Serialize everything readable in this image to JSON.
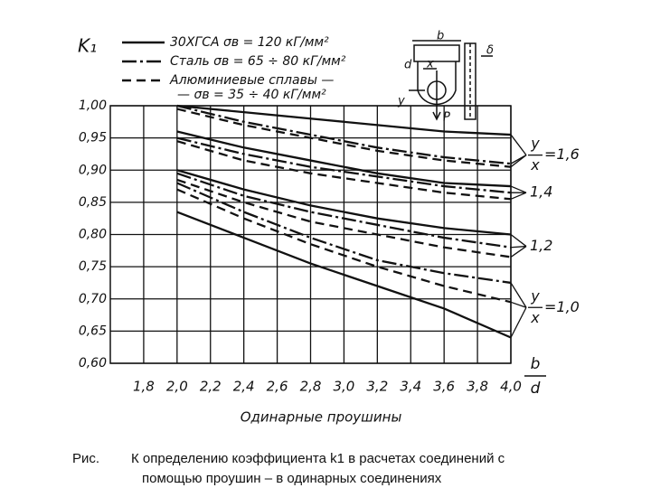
{
  "chart_data": {
    "type": "line",
    "y_axis_label": "K₁",
    "x_axis_label": {
      "numerator": "b",
      "denominator": "d"
    },
    "subtitle": "Одинарные проушины",
    "xlim": [
      1.6,
      4.0
    ],
    "ylim": [
      0.6,
      1.0
    ],
    "xticks": [
      {
        "value": 1.8,
        "label": "1,8"
      },
      {
        "value": 2.0,
        "label": "2,0"
      },
      {
        "value": 2.2,
        "label": "2,2"
      },
      {
        "value": 2.4,
        "label": "2,4"
      },
      {
        "value": 2.6,
        "label": "2,6"
      },
      {
        "value": 2.8,
        "label": "2,8"
      },
      {
        "value": 3.0,
        "label": "3,0"
      },
      {
        "value": 3.2,
        "label": "3,2"
      },
      {
        "value": 3.4,
        "label": "3,4"
      },
      {
        "value": 3.6,
        "label": "3,6"
      },
      {
        "value": 3.8,
        "label": "3,8"
      },
      {
        "value": 4.0,
        "label": "4,0"
      }
    ],
    "yticks": [
      {
        "value": 1.0,
        "label": "1,00"
      },
      {
        "value": 0.95,
        "label": "0,95"
      },
      {
        "value": 0.9,
        "label": "0,90"
      },
      {
        "value": 0.85,
        "label": "0,85"
      },
      {
        "value": 0.8,
        "label": "0,80"
      },
      {
        "value": 0.75,
        "label": "0,75"
      },
      {
        "value": 0.7,
        "label": "0,70"
      },
      {
        "value": 0.65,
        "label": "0,65"
      },
      {
        "value": 0.6,
        "label": "0,60"
      }
    ],
    "grid": true,
    "color": "#111111",
    "legend": [
      {
        "name": "30ХГСА  σв = 120 кГ/мм²",
        "dash": ""
      },
      {
        "name": "Сталь σв = 65 ÷ 80 кГ/мм²",
        "dash": "16 4 3 4"
      },
      {
        "name": "Алюминиевые сплавы —",
        "name_cont": "— σв = 35 ÷ 40 кГ/мм²",
        "dash": "10 6"
      }
    ],
    "groups": [
      {
        "numerator": "y",
        "denominator": "x",
        "label": "=1,6"
      },
      {
        "label": "1,4"
      },
      {
        "label": "1,2"
      },
      {
        "numerator": "y",
        "denominator": "x",
        "label": "=1,0"
      }
    ],
    "x": [
      2.0,
      2.4,
      2.8,
      3.2,
      3.6,
      4.0
    ],
    "series": [
      {
        "group": 0,
        "legend": 0,
        "values": [
          1.0,
          0.99,
          0.98,
          0.97,
          0.96,
          0.955
        ]
      },
      {
        "group": 0,
        "legend": 1,
        "values": [
          1.0,
          0.975,
          0.955,
          0.935,
          0.92,
          0.91
        ]
      },
      {
        "group": 0,
        "legend": 2,
        "values": [
          0.995,
          0.97,
          0.95,
          0.93,
          0.915,
          0.905
        ]
      },
      {
        "group": 1,
        "legend": 0,
        "values": [
          0.96,
          0.935,
          0.915,
          0.895,
          0.88,
          0.875
        ]
      },
      {
        "group": 1,
        "legend": 1,
        "values": [
          0.95,
          0.925,
          0.905,
          0.89,
          0.875,
          0.865
        ]
      },
      {
        "group": 1,
        "legend": 2,
        "values": [
          0.945,
          0.915,
          0.895,
          0.88,
          0.865,
          0.855
        ]
      },
      {
        "group": 2,
        "legend": 0,
        "values": [
          0.9,
          0.87,
          0.845,
          0.825,
          0.81,
          0.8
        ]
      },
      {
        "group": 2,
        "legend": 1,
        "values": [
          0.895,
          0.86,
          0.835,
          0.815,
          0.795,
          0.78
        ]
      },
      {
        "group": 2,
        "legend": 2,
        "values": [
          0.885,
          0.85,
          0.82,
          0.8,
          0.78,
          0.765
        ]
      },
      {
        "group": 3,
        "legend": 0,
        "values": [
          0.835,
          0.795,
          0.755,
          0.72,
          0.685,
          0.64
        ]
      },
      {
        "group": 3,
        "legend": 1,
        "values": [
          0.88,
          0.835,
          0.795,
          0.76,
          0.74,
          0.725
        ]
      },
      {
        "group": 3,
        "legend": 2,
        "values": [
          0.87,
          0.825,
          0.785,
          0.75,
          0.72,
          0.695
        ]
      }
    ],
    "inset_labels": [
      "b",
      "x",
      "d",
      "y",
      "P",
      "δ"
    ]
  },
  "caption": {
    "prefix": "Рис.",
    "line1": "К определению коэффициента k1 в расчетах соединений с",
    "line2": "помощью проушин – в одинарных  соединениях"
  }
}
